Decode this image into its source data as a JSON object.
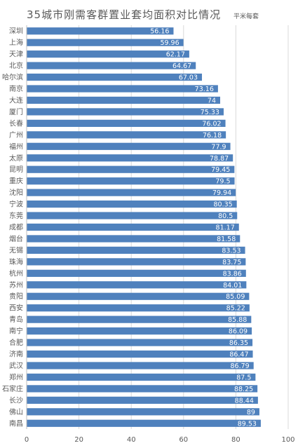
{
  "chart_data": {
    "type": "bar",
    "orientation": "horizontal",
    "title": "35城市刚需客群置业套均面积对比情况",
    "unit": "平米每套",
    "categories": [
      "深圳",
      "上海",
      "天津",
      "北京",
      "哈尔滨",
      "南京",
      "大连",
      "厦门",
      "长春",
      "广州",
      "福州",
      "太原",
      "昆明",
      "重庆",
      "沈阳",
      "宁波",
      "东莞",
      "成都",
      "烟台",
      "无锡",
      "珠海",
      "杭州",
      "苏州",
      "贵阳",
      "西安",
      "青岛",
      "南宁",
      "合肥",
      "济南",
      "武汉",
      "郑州",
      "石家庄",
      "长沙",
      "佛山",
      "南昌"
    ],
    "values": [
      56.16,
      59.96,
      62.17,
      64.67,
      67.03,
      73.16,
      74,
      75.33,
      76.02,
      76.18,
      77.9,
      78.87,
      79.45,
      79.5,
      79.94,
      80.35,
      80.5,
      81.17,
      81.58,
      83.53,
      83.75,
      83.86,
      84.01,
      85.09,
      85.22,
      85.88,
      86.09,
      86.35,
      86.47,
      86.79,
      87.5,
      88.25,
      88.44,
      89,
      89.53
    ],
    "xlim": [
      0,
      100
    ],
    "xticks": [
      "0",
      "20",
      "40",
      "60",
      "80",
      "100"
    ],
    "bar_color": "#4f81bd",
    "grid": true
  }
}
